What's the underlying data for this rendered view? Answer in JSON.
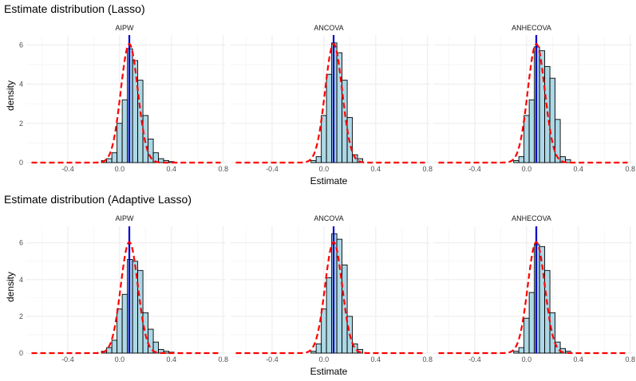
{
  "chart_data": [
    {
      "type": "histogram",
      "title": "Estimate distribution (Lasso)",
      "xlabel": "Estimate",
      "ylabel": "density",
      "xlim": [
        -0.72,
        0.82
      ],
      "ylim": [
        0,
        6.5
      ],
      "x_ticks": [
        "-0.4",
        "0.0",
        "0.4",
        "0.8"
      ],
      "y_ticks": [
        "0",
        "2",
        "4",
        "6"
      ],
      "grid": true,
      "bin_width": 0.04,
      "bar_fill": "#add8e6",
      "bar_stroke": "#000000",
      "true_value_line": {
        "x": 0.075,
        "color": "#0000cd"
      },
      "normal_curve": {
        "mean": 0.075,
        "sd": 0.066,
        "color": "#ff0000",
        "dash": "dashed"
      },
      "panels": [
        {
          "label": "AIPW",
          "bins_start": -0.14,
          "densities": [
            0.1,
            0.2,
            0.5,
            2.0,
            3.2,
            5.8,
            5.2,
            4.2,
            2.4,
            1.2,
            0.5,
            0.2,
            0.1,
            0.05
          ]
        },
        {
          "label": "ANCOVA",
          "bins_start": -0.1,
          "densities": [
            0.1,
            0.3,
            2.4,
            4.5,
            6.1,
            5.6,
            4.2,
            2.3,
            0.4,
            0.2
          ]
        },
        {
          "label": "ANHECOVA",
          "bins_start": -0.1,
          "densities": [
            0.1,
            0.3,
            2.4,
            3.2,
            5.9,
            5.7,
            4.9,
            4.3,
            2.2,
            0.3,
            0.15
          ]
        }
      ]
    },
    {
      "type": "histogram",
      "title": "Estimate distribution (Adaptive Lasso)",
      "xlabel": "Estimate",
      "ylabel": "density",
      "xlim": [
        -0.72,
        0.82
      ],
      "ylim": [
        0,
        6.9
      ],
      "x_ticks": [
        "-0.4",
        "0.0",
        "0.4",
        "0.8"
      ],
      "y_ticks": [
        "0",
        "2",
        "4",
        "6"
      ],
      "grid": true,
      "bin_width": 0.04,
      "bar_fill": "#add8e6",
      "bar_stroke": "#000000",
      "true_value_line": {
        "x": 0.075,
        "color": "#0000cd"
      },
      "normal_curve": {
        "mean": 0.075,
        "sd": 0.066,
        "color": "#ff0000",
        "dash": "dashed"
      },
      "panels": [
        {
          "label": "AIPW",
          "bins_start": -0.14,
          "densities": [
            0.1,
            0.3,
            0.7,
            2.4,
            3.2,
            5.1,
            5.0,
            4.5,
            2.2,
            1.3,
            0.6,
            0.2,
            0.1,
            0.05
          ]
        },
        {
          "label": "ANCOVA",
          "bins_start": -0.1,
          "densities": [
            0.1,
            0.5,
            2.4,
            4.1,
            6.5,
            6.2,
            4.8,
            2.0,
            0.5,
            0.2
          ]
        },
        {
          "label": "ANHECOVA",
          "bins_start": -0.1,
          "densities": [
            0.1,
            0.3,
            1.9,
            3.3,
            5.9,
            5.8,
            4.5,
            2.2,
            0.6,
            0.25,
            0.1
          ]
        }
      ]
    }
  ]
}
